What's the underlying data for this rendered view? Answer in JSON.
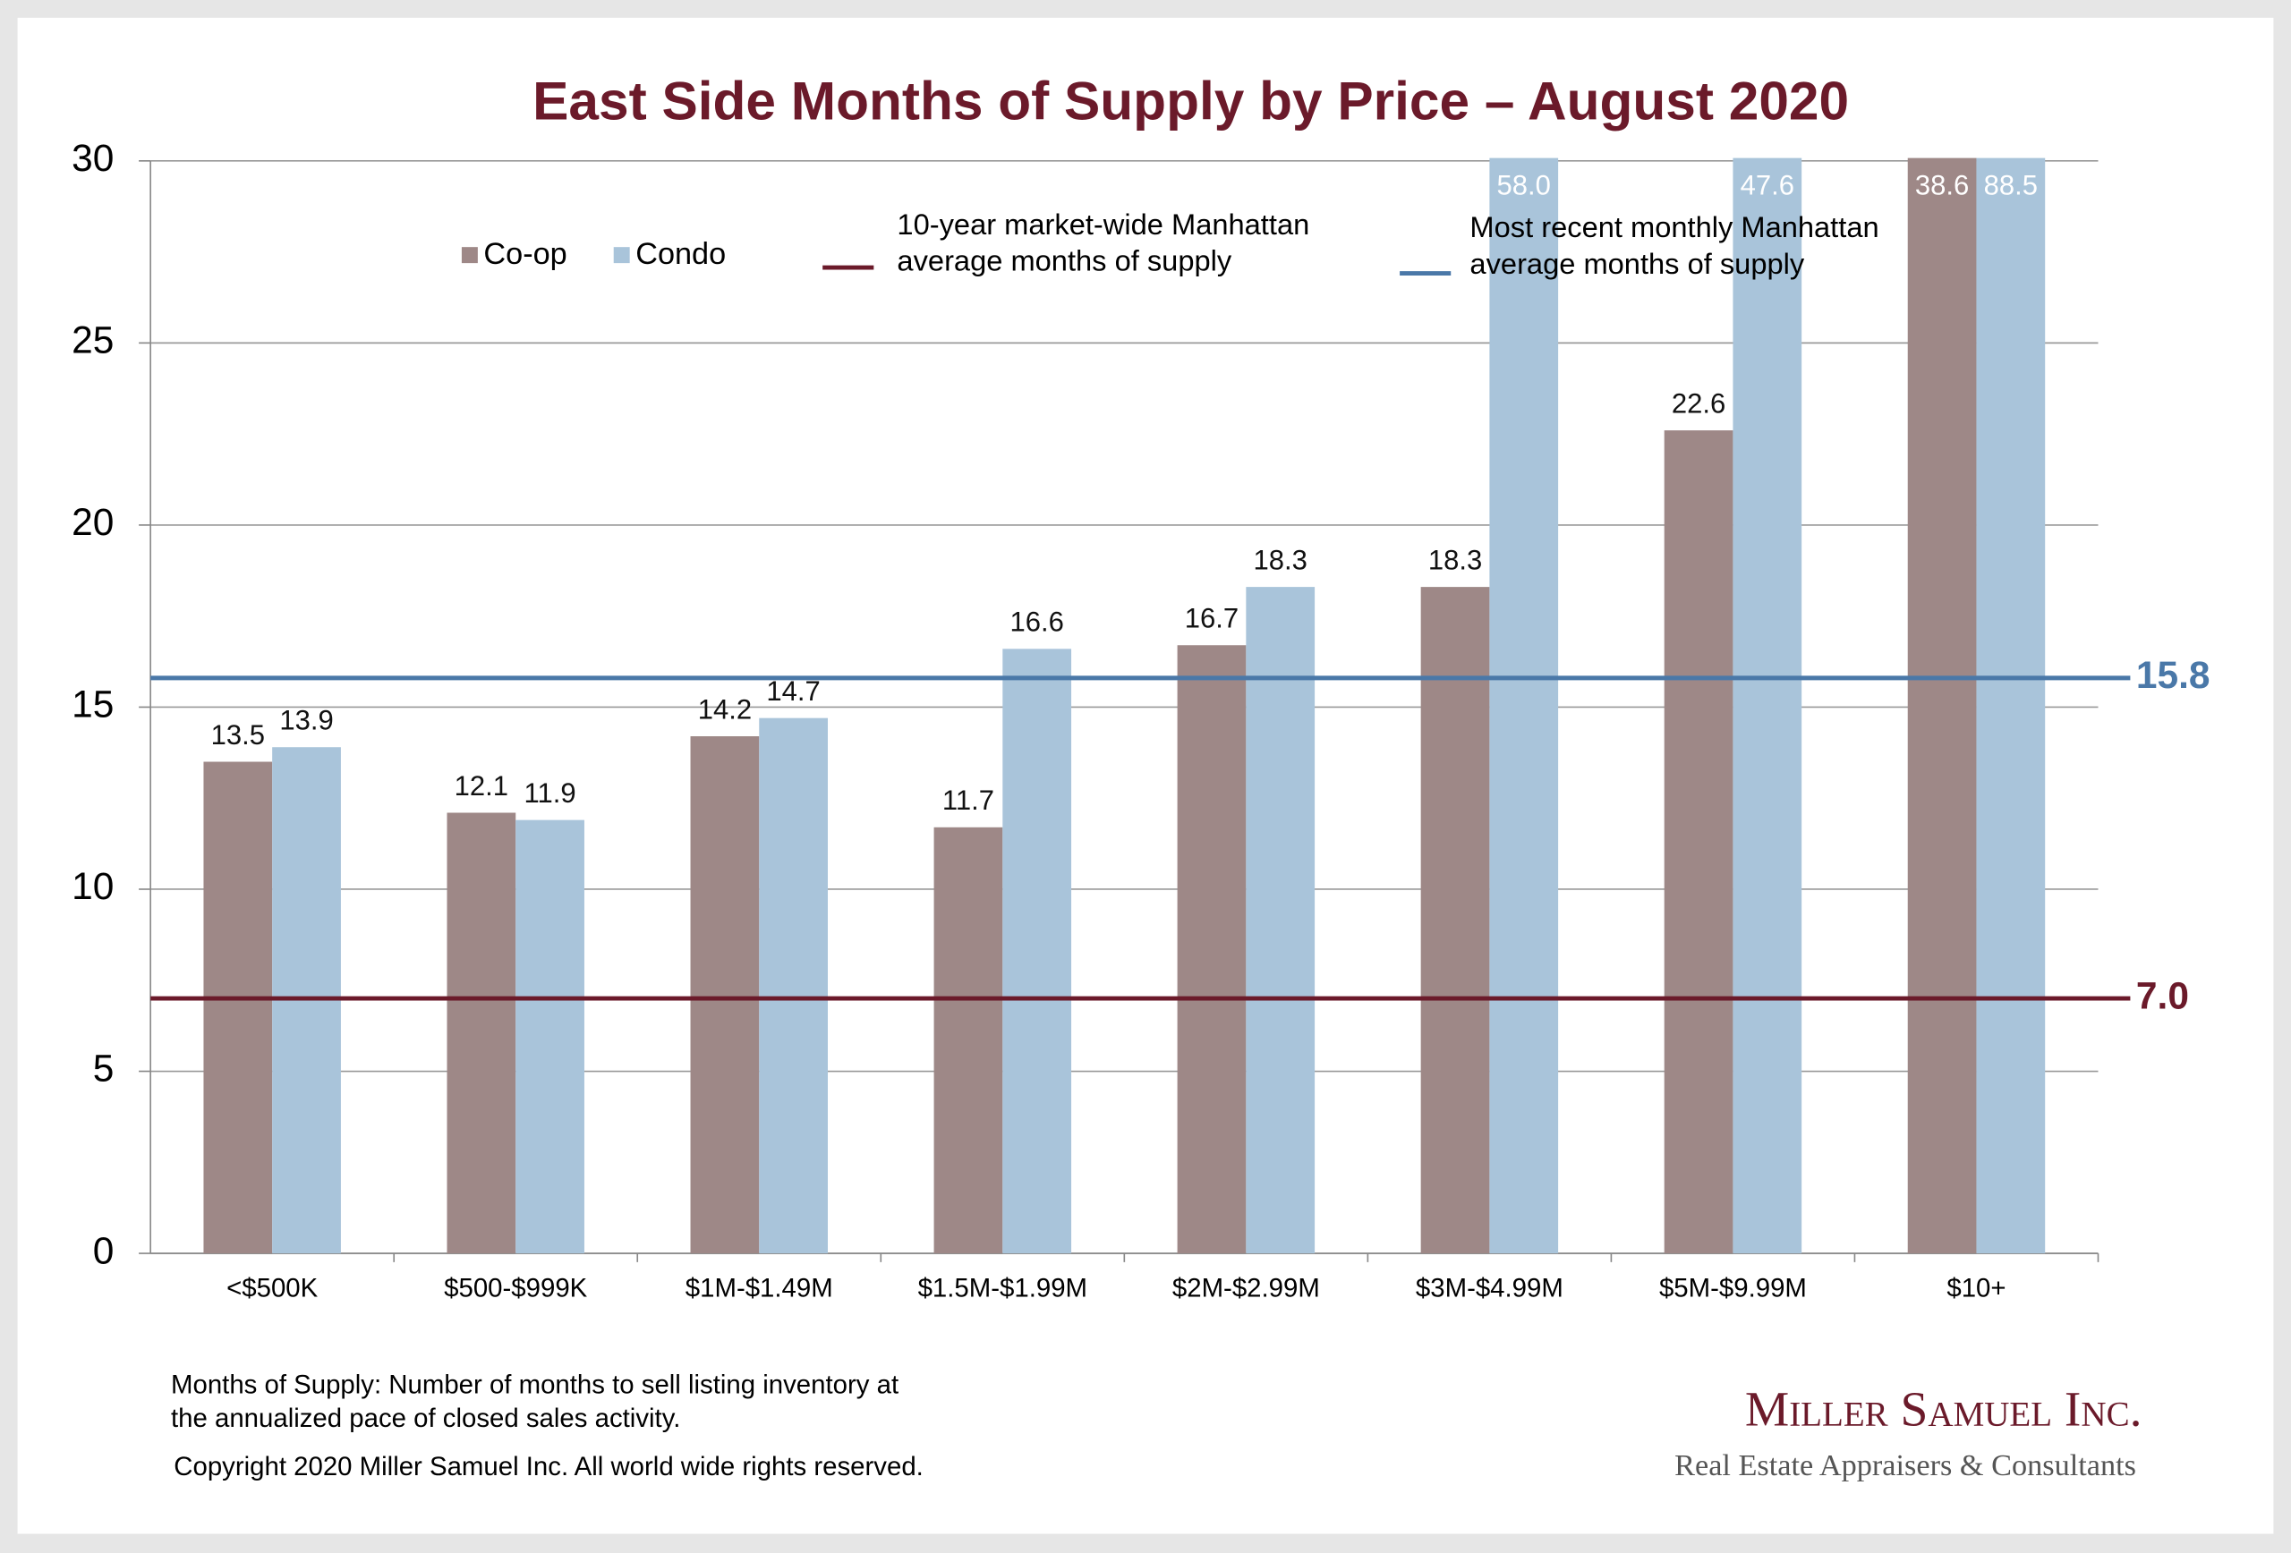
{
  "chart_data": {
    "type": "bar",
    "title": "East Side Months of Supply by Price – August 2020",
    "categories": [
      "<$500K",
      "$500-$999K",
      "$1M-$1.49M",
      "$1.5M-$1.99M",
      "$2M-$2.99M",
      "$3M-$4.99M",
      "$5M-$9.99M",
      "$10+"
    ],
    "series": [
      {
        "name": "Co-op",
        "color": "#9e8887",
        "values": [
          13.5,
          12.1,
          14.2,
          11.7,
          16.7,
          18.3,
          22.6,
          38.6
        ],
        "value_labels": [
          "13.5",
          "12.1",
          "14.2",
          "11.7",
          "16.7",
          "18.3",
          "22.6",
          "38.6"
        ]
      },
      {
        "name": "Condo",
        "color": "#a9c4da",
        "values": [
          13.9,
          11.9,
          14.7,
          16.6,
          18.3,
          58.0,
          47.6,
          88.5
        ],
        "value_labels": [
          "13.9",
          "11.9",
          "14.7",
          "16.6",
          "18.3",
          "58.0",
          "47.6",
          "88.5"
        ]
      }
    ],
    "reference_lines": [
      {
        "name": [
          "10-year  market-wide Manhattan",
          "average months of supply"
        ],
        "color": "#6b1a2a",
        "value": {
          "value": 7.0,
          "label": "7.0"
        }
      },
      {
        "name": [
          "Most recent monthly Manhattan",
          "average months of supply"
        ],
        "color": "#4a78a8",
        "value": {
          "value": 15.8,
          "label": "15.8"
        }
      }
    ],
    "ylim": [
      0,
      30
    ],
    "yticks": [
      0,
      5,
      10,
      15,
      20,
      25,
      30
    ],
    "grid": true,
    "footnote": [
      "Months of Supply: Number of months to sell listing inventory at",
      "the annualized pace of closed sales activity."
    ],
    "copyright": "Copyright 2020 Miller Samuel Inc.  All world wide rights reserved.",
    "logo": {
      "name": "Miller Samuel Inc.",
      "tagline": "Real Estate Appraisers & Consultants"
    }
  }
}
